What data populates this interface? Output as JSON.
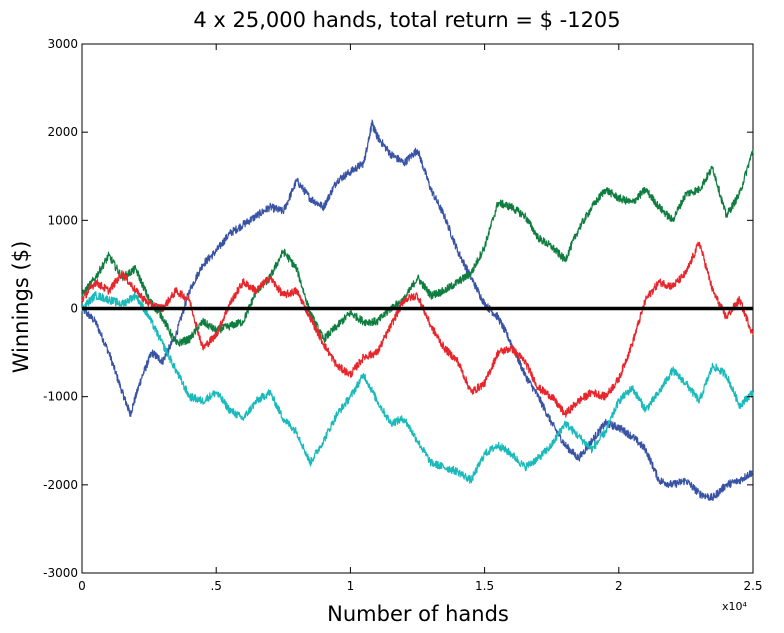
{
  "chart_data": {
    "type": "line",
    "title": "4 x 25,000 hands, total return = $ -1205",
    "xlabel": "Number of hands",
    "ylabel": "Winnings ($)",
    "x_exponent_label": "x10⁴",
    "xlim": [
      0,
      25000
    ],
    "ylim": [
      -3000,
      3000
    ],
    "x_ticks": [
      0,
      5000,
      10000,
      15000,
      20000,
      25000
    ],
    "x_tick_labels": [
      "0",
      ".5",
      "1",
      "1.5",
      "2",
      "2.5"
    ],
    "y_ticks": [
      -3000,
      -2000,
      -1000,
      0,
      1000,
      2000,
      3000
    ],
    "y_tick_labels": [
      "-3000",
      "-2000",
      "-1000",
      "0",
      "1000",
      "2000",
      "3000"
    ],
    "grid": false,
    "zero_line": true,
    "series": [
      {
        "color": "#3953a4",
        "x": [
          0,
          500,
          1000,
          1500,
          1800,
          2200,
          2600,
          3000,
          3500,
          4000,
          4500,
          5000,
          5500,
          6000,
          6500,
          7000,
          7500,
          8000,
          8500,
          9000,
          9500,
          10000,
          10500,
          10800,
          11000,
          11500,
          12000,
          12500,
          13000,
          13500,
          14000,
          14500,
          15000,
          15500,
          16000,
          16500,
          17000,
          17500,
          18000,
          18500,
          19000,
          19500,
          20000,
          20500,
          21000,
          21500,
          22000,
          22500,
          23000,
          23500,
          24000,
          24500,
          25000
        ],
        "values": [
          0,
          -150,
          -500,
          -950,
          -1200,
          -800,
          -500,
          -600,
          -300,
          200,
          500,
          650,
          850,
          950,
          1050,
          1150,
          1100,
          1450,
          1250,
          1150,
          1450,
          1550,
          1650,
          2100,
          1950,
          1750,
          1650,
          1800,
          1350,
          1050,
          650,
          350,
          50,
          -100,
          -400,
          -750,
          -1000,
          -1300,
          -1550,
          -1700,
          -1500,
          -1300,
          -1350,
          -1450,
          -1600,
          -1950,
          -2000,
          -1950,
          -2100,
          -2150,
          -2000,
          -1950,
          -1850
        ]
      },
      {
        "color": "#0e7d3f",
        "x": [
          0,
          500,
          1000,
          1500,
          2000,
          2500,
          3000,
          3500,
          4000,
          4500,
          5000,
          5500,
          6000,
          6500,
          7000,
          7500,
          8000,
          8500,
          9000,
          9500,
          10000,
          10500,
          11000,
          11500,
          12000,
          12500,
          13000,
          13500,
          14000,
          14500,
          15000,
          15500,
          16000,
          16500,
          17000,
          17500,
          18000,
          18500,
          19000,
          19500,
          20000,
          20500,
          21000,
          21500,
          22000,
          22500,
          23000,
          23500,
          24000,
          24500,
          25000
        ],
        "values": [
          150,
          350,
          600,
          350,
          450,
          100,
          -100,
          -400,
          -350,
          -150,
          -250,
          -200,
          -150,
          200,
          350,
          650,
          450,
          -50,
          -350,
          -200,
          -50,
          -150,
          -150,
          0,
          100,
          350,
          150,
          200,
          300,
          400,
          700,
          1200,
          1150,
          1050,
          800,
          700,
          550,
          900,
          1150,
          1350,
          1250,
          1200,
          1350,
          1150,
          1000,
          1300,
          1350,
          1600,
          1050,
          1300,
          1800
        ]
      },
      {
        "color": "#e8252b",
        "x": [
          0,
          500,
          1000,
          1500,
          2000,
          2500,
          3000,
          3500,
          4000,
          4500,
          5000,
          5500,
          6000,
          6500,
          7000,
          7500,
          8000,
          8500,
          9000,
          9500,
          10000,
          10500,
          11000,
          11500,
          12000,
          12500,
          13000,
          13500,
          14000,
          14500,
          15000,
          15500,
          16000,
          16500,
          17000,
          17500,
          18000,
          18500,
          19000,
          19500,
          20000,
          20500,
          21000,
          21500,
          22000,
          22500,
          23000,
          23500,
          24000,
          24500,
          25000
        ],
        "values": [
          100,
          300,
          200,
          400,
          200,
          50,
          0,
          200,
          100,
          -450,
          -300,
          50,
          300,
          200,
          350,
          150,
          200,
          -100,
          -400,
          -650,
          -750,
          -550,
          -500,
          -200,
          100,
          150,
          -200,
          -450,
          -600,
          -950,
          -850,
          -500,
          -450,
          -600,
          -900,
          -1000,
          -1200,
          -1050,
          -950,
          -1000,
          -800,
          -400,
          100,
          300,
          250,
          400,
          750,
          200,
          -100,
          100,
          -300
        ]
      },
      {
        "color": "#1ababa",
        "x": [
          0,
          500,
          1000,
          1500,
          2000,
          2500,
          3000,
          3500,
          4000,
          4500,
          5000,
          5500,
          6000,
          6500,
          7000,
          7500,
          8000,
          8500,
          9000,
          9500,
          10000,
          10500,
          11000,
          11500,
          12000,
          12500,
          13000,
          13500,
          14000,
          14500,
          15000,
          15500,
          16000,
          16500,
          17000,
          17500,
          18000,
          18500,
          19000,
          19500,
          20000,
          20500,
          21000,
          21500,
          22000,
          22500,
          23000,
          23500,
          24000,
          24500,
          25000
        ],
        "values": [
          0,
          150,
          100,
          50,
          150,
          -100,
          -400,
          -700,
          -1000,
          -1050,
          -950,
          -1150,
          -1250,
          -1050,
          -950,
          -1250,
          -1400,
          -1750,
          -1500,
          -1200,
          -1000,
          -750,
          -1050,
          -1300,
          -1250,
          -1500,
          -1750,
          -1800,
          -1850,
          -1950,
          -1650,
          -1550,
          -1650,
          -1800,
          -1700,
          -1550,
          -1300,
          -1450,
          -1600,
          -1400,
          -1050,
          -900,
          -1150,
          -950,
          -700,
          -850,
          -1050,
          -650,
          -750,
          -1100,
          -950
        ]
      }
    ]
  }
}
